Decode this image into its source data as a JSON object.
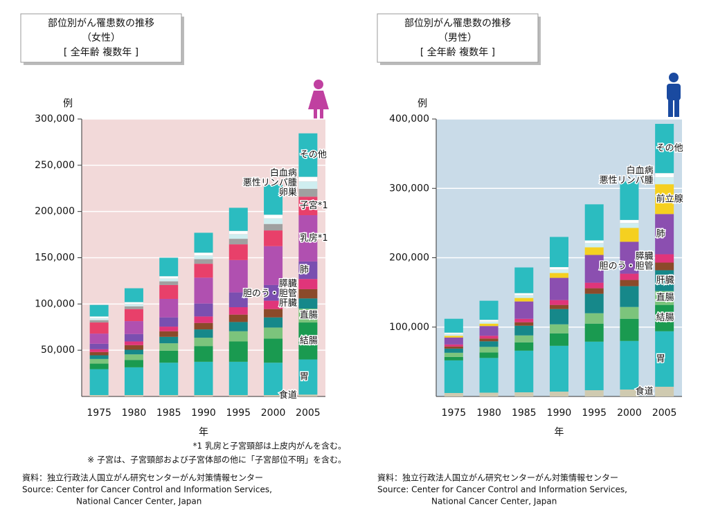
{
  "chart_data": [
    {
      "type": "bar",
      "stacked": true,
      "title": "部位別がん罹患数の推移",
      "subtitle": "（女性）",
      "scope": "[ 全年齢 複数年 ]",
      "y_unit": "例",
      "xlabel": "年",
      "categories": [
        "1975",
        "1980",
        "1985",
        "1990",
        "1995",
        "2000",
        "2005"
      ],
      "ylim": [
        0,
        300000
      ],
      "yticks": [
        {
          "value": 50000,
          "label": "50,000"
        },
        {
          "value": 100000,
          "label": "100,000"
        },
        {
          "value": 150000,
          "label": "150,000"
        },
        {
          "value": 200000,
          "label": "200,000"
        },
        {
          "value": 250000,
          "label": "250,000"
        },
        {
          "value": 300000,
          "label": "300,000"
        }
      ],
      "grid": true,
      "series": [
        {
          "name": "食道",
          "color": "#cfcab0",
          "values": [
            1500,
            1500,
            1500,
            1500,
            1500,
            1500,
            2000
          ]
        },
        {
          "name": "胃",
          "color": "#2bbcc0",
          "values": [
            28000,
            30000,
            35000,
            36000,
            36000,
            35000,
            38000
          ]
        },
        {
          "name": "結腸",
          "color": "#1a9a50",
          "values": [
            6000,
            8000,
            13000,
            17000,
            22000,
            26000,
            40000
          ]
        },
        {
          "name": "直腸",
          "color": "#7cc47c",
          "values": [
            5000,
            6000,
            8000,
            9000,
            11000,
            12000,
            15000
          ]
        },
        {
          "name": "肝臓",
          "color": "#16888a",
          "values": [
            4000,
            5000,
            7000,
            9000,
            10000,
            11000,
            11000
          ]
        },
        {
          "name": "胆のう・胆管",
          "color": "#8b4a2a",
          "values": [
            3500,
            5000,
            6000,
            7000,
            8000,
            9000,
            10000
          ]
        },
        {
          "name": "膵臓",
          "color": "#e0357a",
          "values": [
            3000,
            4000,
            5000,
            7000,
            8000,
            9000,
            11000
          ]
        },
        {
          "name": "肺",
          "color": "#7a4fb0",
          "values": [
            6000,
            8000,
            10000,
            14000,
            16000,
            17000,
            19000
          ]
        },
        {
          "name": "乳房*1",
          "color": "#b050b0",
          "values": [
            11000,
            14000,
            20000,
            28000,
            35000,
            42000,
            50000
          ]
        },
        {
          "name": "子宮*1",
          "color": "#e8406a",
          "values": [
            12000,
            13000,
            15000,
            15000,
            17000,
            17000,
            20000
          ]
        },
        {
          "name": "卵巣",
          "color": "#a0a0a0",
          "values": [
            2500,
            3000,
            4000,
            5000,
            6000,
            7000,
            8500
          ]
        },
        {
          "name": "悪性リンパ腫",
          "color": "#cfeef0",
          "values": [
            2000,
            2500,
            3000,
            4000,
            5000,
            6000,
            8000
          ]
        },
        {
          "name": "白血病",
          "color": "#ffffff",
          "values": [
            2000,
            2000,
            2500,
            3000,
            3500,
            4000,
            5000
          ]
        },
        {
          "name": "その他",
          "color": "#2bbcc0",
          "values": [
            12500,
            15000,
            20000,
            21500,
            25000,
            32500,
            47000
          ]
        }
      ],
      "notes": [
        "*1 乳房と子宮頸部は上皮内がんを含む。",
        "※ 子宮は、子宮頸部および子宮体部の他に「子宮部位不明」を含む。"
      ],
      "source": [
        "資料：独立行政法人国立がん研究センターがん対策情報センター",
        "Source:  Center for Cancer Control and Information Services,",
        "National Cancer Center, Japan"
      ]
    },
    {
      "type": "bar",
      "stacked": true,
      "title": "部位別がん罹患数の推移",
      "subtitle": "（男性）",
      "scope": "[ 全年齢 複数年 ]",
      "y_unit": "例",
      "xlabel": "年",
      "categories": [
        "1975",
        "1980",
        "1985",
        "1990",
        "1995",
        "2000",
        "2005"
      ],
      "ylim": [
        0,
        400000
      ],
      "yticks": [
        {
          "value": 100000,
          "label": "100,000"
        },
        {
          "value": 200000,
          "label": "200,000"
        },
        {
          "value": 300000,
          "label": "300,000"
        },
        {
          "value": 400000,
          "label": "400,000"
        }
      ],
      "grid": true,
      "series": [
        {
          "name": "食道",
          "color": "#cfcab0",
          "values": [
            5000,
            5500,
            6000,
            7000,
            9000,
            10000,
            14000
          ]
        },
        {
          "name": "胃",
          "color": "#2bbcc0",
          "values": [
            47000,
            50000,
            60000,
            66000,
            70000,
            70000,
            80000
          ]
        },
        {
          "name": "結腸",
          "color": "#1a9a50",
          "values": [
            5000,
            8000,
            12000,
            18000,
            26000,
            32000,
            38000
          ]
        },
        {
          "name": "直腸",
          "color": "#7cc47c",
          "values": [
            6000,
            8000,
            10000,
            13000,
            15000,
            17000,
            20000
          ]
        },
        {
          "name": "肝臓",
          "color": "#16888a",
          "values": [
            6000,
            8000,
            14000,
            22000,
            28000,
            30000,
            30000
          ]
        },
        {
          "name": "胆のう・胆管",
          "color": "#8b4a2a",
          "values": [
            3000,
            4000,
            5000,
            6000,
            8000,
            9000,
            11000
          ]
        },
        {
          "name": "膵臓",
          "color": "#e0357a",
          "values": [
            3000,
            4000,
            5000,
            7000,
            8000,
            9000,
            12000
          ]
        },
        {
          "name": "肺",
          "color": "#8b4fb0",
          "values": [
            10000,
            14000,
            25000,
            32000,
            40000,
            46000,
            58000
          ]
        },
        {
          "name": "前立腺",
          "color": "#f5d020",
          "values": [
            2500,
            3500,
            5000,
            7000,
            11000,
            20000,
            43000
          ]
        },
        {
          "name": "悪性リンパ腫",
          "color": "#cfeef0",
          "values": [
            2500,
            3000,
            4000,
            5000,
            6000,
            7000,
            10000
          ]
        },
        {
          "name": "白血病",
          "color": "#ffffff",
          "values": [
            2000,
            2500,
            3000,
            3500,
            4000,
            4500,
            6000
          ]
        },
        {
          "name": "その他",
          "color": "#2bbcc0",
          "values": [
            20000,
            27500,
            37000,
            43500,
            52000,
            55500,
            71000
          ]
        }
      ],
      "source": [
        "資料：独立行政法人国立がん研究センターがん対策情報センター",
        "Source:  Center for Cancer Control and Information Services,",
        "National Cancer Center, Japan"
      ]
    }
  ]
}
